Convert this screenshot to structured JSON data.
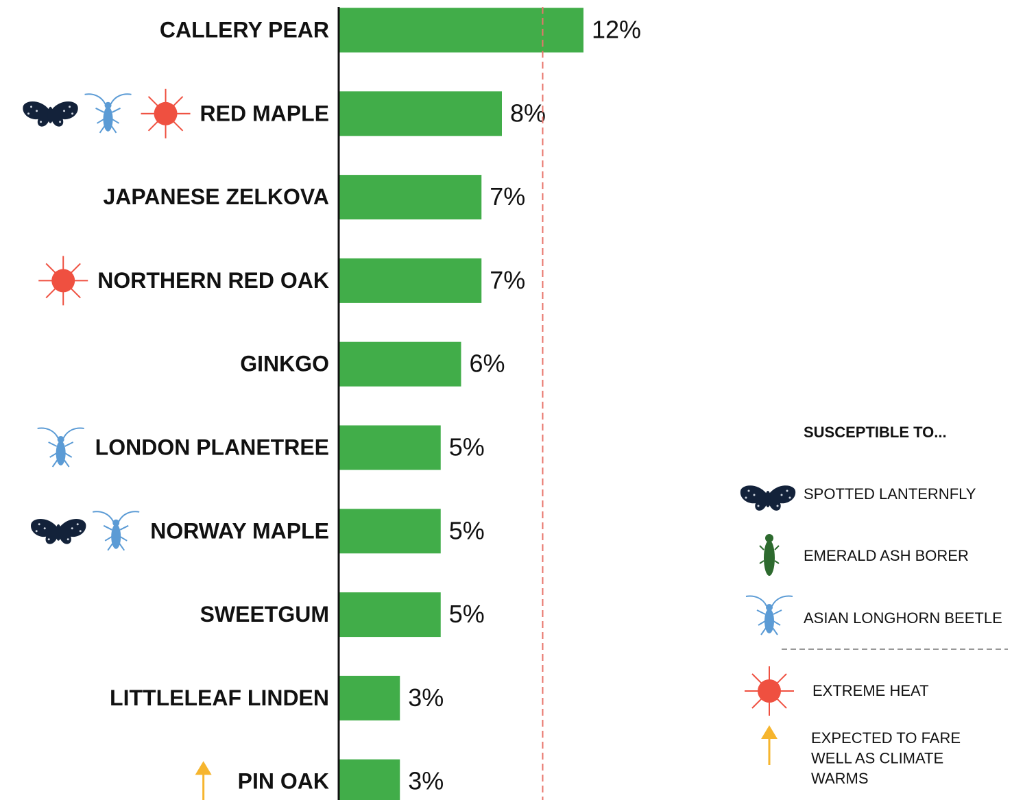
{
  "chart_data": {
    "type": "bar",
    "orientation": "horizontal",
    "categories": [
      "CALLERY PEAR",
      "RED MAPLE",
      "JAPANESE ZELKOVA",
      "NORTHERN RED OAK",
      "GINKGO",
      "LONDON PLANETREE",
      "NORWAY MAPLE",
      "SWEETGUM",
      "LITTLELEAF LINDEN",
      "PIN OAK"
    ],
    "values": [
      12,
      8,
      7,
      7,
      6,
      5,
      5,
      5,
      3,
      3
    ],
    "value_labels": [
      "12%",
      "8%",
      "7%",
      "7%",
      "6%",
      "5%",
      "5%",
      "5%",
      "3%",
      "3%"
    ],
    "color": "#41ad49",
    "xlim": [
      0,
      12
    ],
    "reference_line": {
      "value": 10,
      "color": "#e8756b"
    },
    "markers": [
      [],
      [
        0,
        2,
        3
      ],
      [],
      [
        3
      ],
      [],
      [
        2
      ],
      [
        0,
        2
      ],
      [],
      [],
      [
        4
      ]
    ],
    "legend": {
      "title": "SUSCEPTIBLE TO...",
      "items": [
        [
          "SPOTTED LANTERNFLY"
        ],
        [
          "EMERALD ASH BORER"
        ],
        [
          "ASIAN LONGHORN BEETLE"
        ],
        [
          "EXTREME HEAT"
        ],
        [
          "EXPECTED TO FARE",
          "WELL AS CLIMATE",
          "WARMS"
        ]
      ]
    }
  }
}
